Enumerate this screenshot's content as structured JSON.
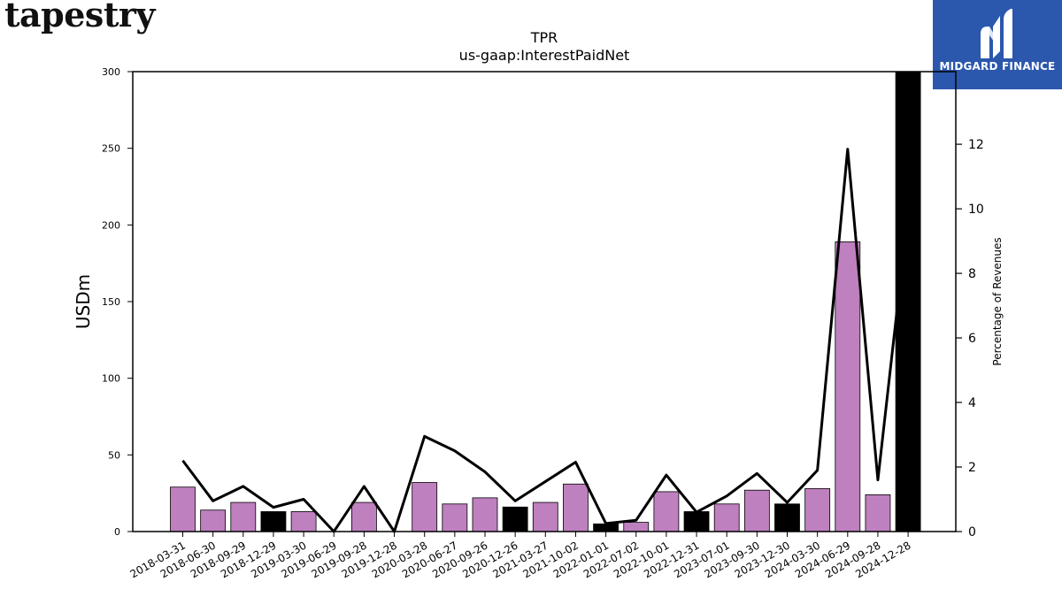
{
  "branding": {
    "company_logo_text": "tapestry",
    "provider_name": "MIDGARD FINANCE",
    "provider_logo_icon": "midgard-m-icon",
    "provider_color": "#2b57ad"
  },
  "chart_data": {
    "type": "bar",
    "title": "TPR",
    "subtitle": "us-gaap:InterestPaidNet",
    "ylabel": "USDm",
    "y2label": "Percentage of Revenues",
    "ylim": [
      0,
      300
    ],
    "y2lim": [
      0,
      14.25
    ],
    "yticks": [
      0,
      50,
      100,
      150,
      200,
      250,
      300
    ],
    "y2ticks": [
      0,
      2,
      4,
      6,
      8,
      10,
      12
    ],
    "categories": [
      "2018-03-31",
      "2018-06-30",
      "2018-09-29",
      "2018-12-29",
      "2019-03-30",
      "2019-06-29",
      "2019-09-28",
      "2019-12-28",
      "2020-03-28",
      "2020-06-27",
      "2020-09-26",
      "2020-12-26",
      "2021-03-27",
      "2021-10-02",
      "2022-01-01",
      "2022-07-02",
      "2022-10-01",
      "2022-12-31",
      "2023-07-01",
      "2023-09-30",
      "2023-12-30",
      "2024-03-30",
      "2024-06-29",
      "2024-09-28",
      "2024-12-28"
    ],
    "series": [
      {
        "kind": "bar",
        "values": [
          29,
          14,
          19,
          13,
          13,
          0,
          19,
          0,
          32,
          18,
          22,
          16,
          19,
          31,
          5,
          6,
          26,
          13,
          18,
          27,
          18,
          28,
          189,
          24,
          300
        ],
        "colors": [
          "#bf80bf",
          "#bf80bf",
          "#bf80bf",
          "#000000",
          "#bf80bf",
          "#bf80bf",
          "#bf80bf",
          "#bf80bf",
          "#bf80bf",
          "#bf80bf",
          "#bf80bf",
          "#000000",
          "#bf80bf",
          "#bf80bf",
          "#000000",
          "#bf80bf",
          "#bf80bf",
          "#000000",
          "#bf80bf",
          "#bf80bf",
          "#000000",
          "#bf80bf",
          "#bf80bf",
          "#bf80bf",
          "#000000"
        ]
      },
      {
        "kind": "line",
        "axis": "right",
        "color": "#000000",
        "values": [
          2.2,
          0.95,
          1.4,
          0.75,
          1.0,
          0.0,
          1.4,
          0.0,
          2.95,
          2.5,
          1.85,
          0.95,
          1.55,
          2.15,
          0.25,
          0.35,
          1.75,
          0.6,
          1.1,
          1.8,
          0.9,
          1.9,
          11.85,
          1.6,
          9.9
        ]
      }
    ],
    "colors": {
      "bar_default": "#bf80bf",
      "bar_highlight": "#000000",
      "line": "#000000"
    }
  }
}
